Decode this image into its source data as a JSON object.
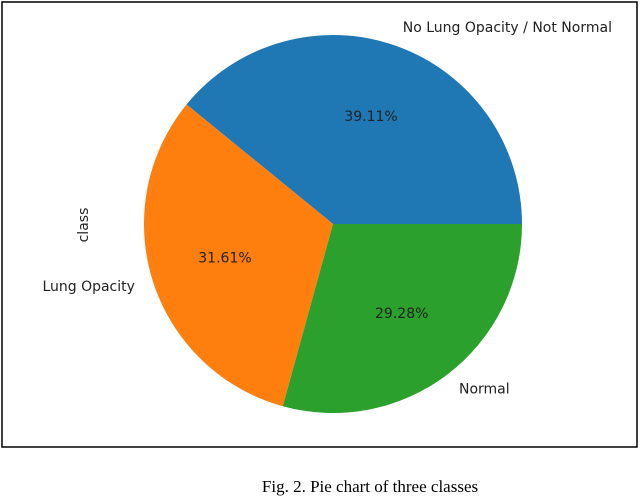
{
  "chart_data": {
    "type": "pie",
    "ylabel": "class",
    "categories": [
      "No Lung Opacity / Not Normal",
      "Lung Opacity",
      "Normal"
    ],
    "values": [
      39.11,
      31.61,
      29.28
    ],
    "value_labels": [
      "39.11%",
      "31.61%",
      "29.28%"
    ],
    "colors": [
      "#1f77b4",
      "#ff7f0e",
      "#2ca02c"
    ]
  },
  "caption": "Fig. 2. Pie chart of three classes"
}
